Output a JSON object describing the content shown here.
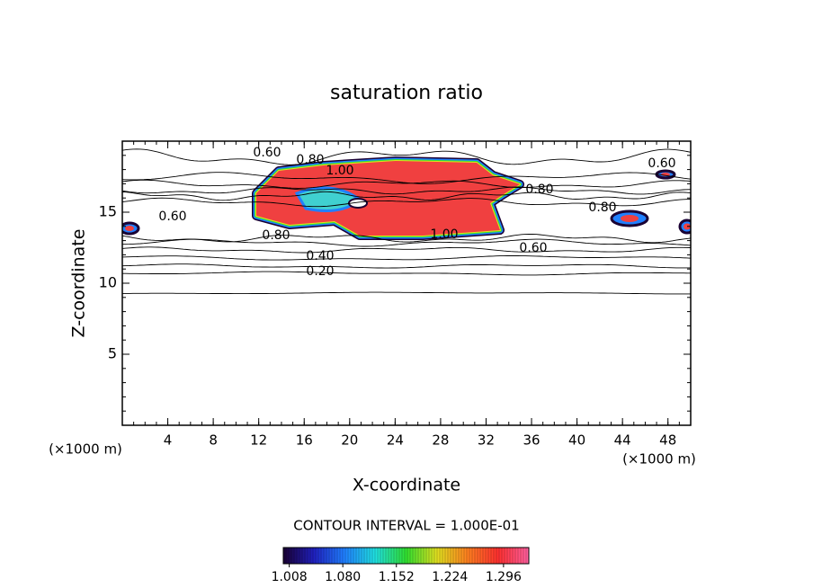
{
  "chart_data": {
    "type": "contour",
    "title": "saturation ratio",
    "x_label": "X-coordinate",
    "y_label": "Z-coordinate",
    "x_unit_label": "(×1000 m)",
    "y_unit_label": "(×1000 m)",
    "xlim": [
      0,
      50
    ],
    "xticks": [
      4,
      8,
      12,
      16,
      20,
      24,
      28,
      32,
      36,
      40,
      44,
      48
    ],
    "ylim": [
      0,
      20
    ],
    "yticks": [
      5,
      10,
      15
    ],
    "contour_interval_label": "CONTOUR INTERVAL = 1.000E-01",
    "contour_labels": [
      {
        "value": 0.6,
        "label": "0.60"
      },
      {
        "value": 0.8,
        "label": "0.80"
      },
      {
        "value": 1.0,
        "label": "1.00"
      },
      {
        "value": 0.6,
        "label": "0.60"
      },
      {
        "value": 0.8,
        "label": "0.80"
      },
      {
        "value": 1.0,
        "label": "1.00"
      },
      {
        "value": 0.4,
        "label": "0.40"
      },
      {
        "value": 0.2,
        "label": "0.20"
      },
      {
        "value": 0.6,
        "label": "0.60"
      },
      {
        "value": 0.8,
        "label": "0.80"
      },
      {
        "value": 0.6,
        "label": "0.60"
      },
      {
        "value": 0.8,
        "label": "0.80"
      }
    ],
    "colorbar_lim": [
      1.0,
      1.33
    ],
    "colorbar_ticks": [
      1.008,
      {
        "value": 1.08,
        "label": "1.080"
      },
      1.152,
      1.224,
      1.296
    ],
    "colormap": [
      "#1a0033",
      "#2020c0",
      "#2080ff",
      "#20e0e0",
      "#30e030",
      "#e0e020",
      "#ff8020",
      "#ff3030",
      "#ff60a0"
    ]
  }
}
